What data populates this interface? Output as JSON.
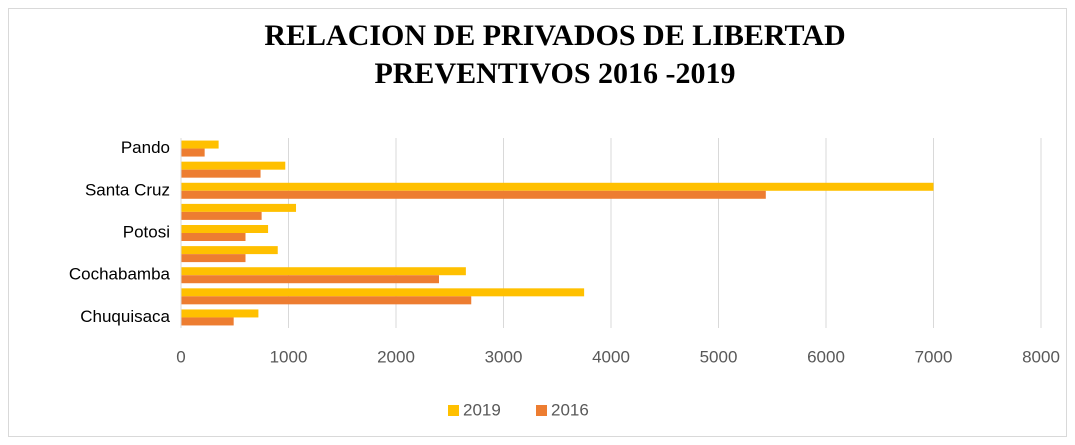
{
  "chart_data": {
    "type": "bar",
    "orientation": "horizontal",
    "title": [
      "RELACION DE PRIVADOS DE LIBERTAD",
      "PREVENTIVOS 2016 -2019"
    ],
    "categories": [
      "Chuquisaca",
      null,
      "Cochabamba",
      null,
      "Potosi",
      null,
      "Santa Cruz",
      null,
      "Pando"
    ],
    "series": [
      {
        "name": "2019",
        "color": "#ffc000",
        "values": [
          720,
          3750,
          2650,
          900,
          810,
          1070,
          7000,
          970,
          350
        ]
      },
      {
        "name": "2016",
        "color": "#ed7d31",
        "values": [
          490,
          2700,
          2400,
          600,
          600,
          750,
          5440,
          740,
          220
        ]
      }
    ],
    "xlim": [
      0,
      8000
    ],
    "xticks": [
      0,
      1000,
      2000,
      3000,
      4000,
      5000,
      6000,
      7000,
      8000
    ],
    "grid": true,
    "legend": "bottom"
  }
}
